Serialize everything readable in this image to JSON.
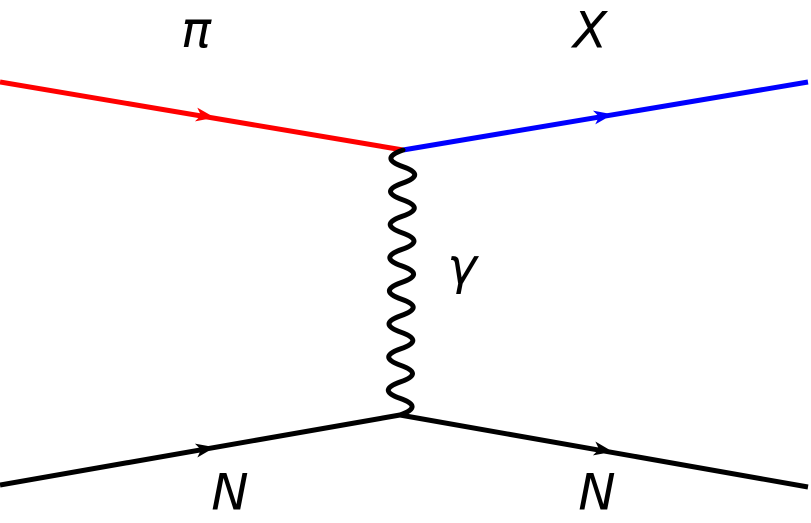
{
  "particles": {
    "incoming_top": "π",
    "outgoing_top": "X",
    "exchange": "γ",
    "incoming_bottom": "N",
    "outgoing_bottom": "N"
  }
}
